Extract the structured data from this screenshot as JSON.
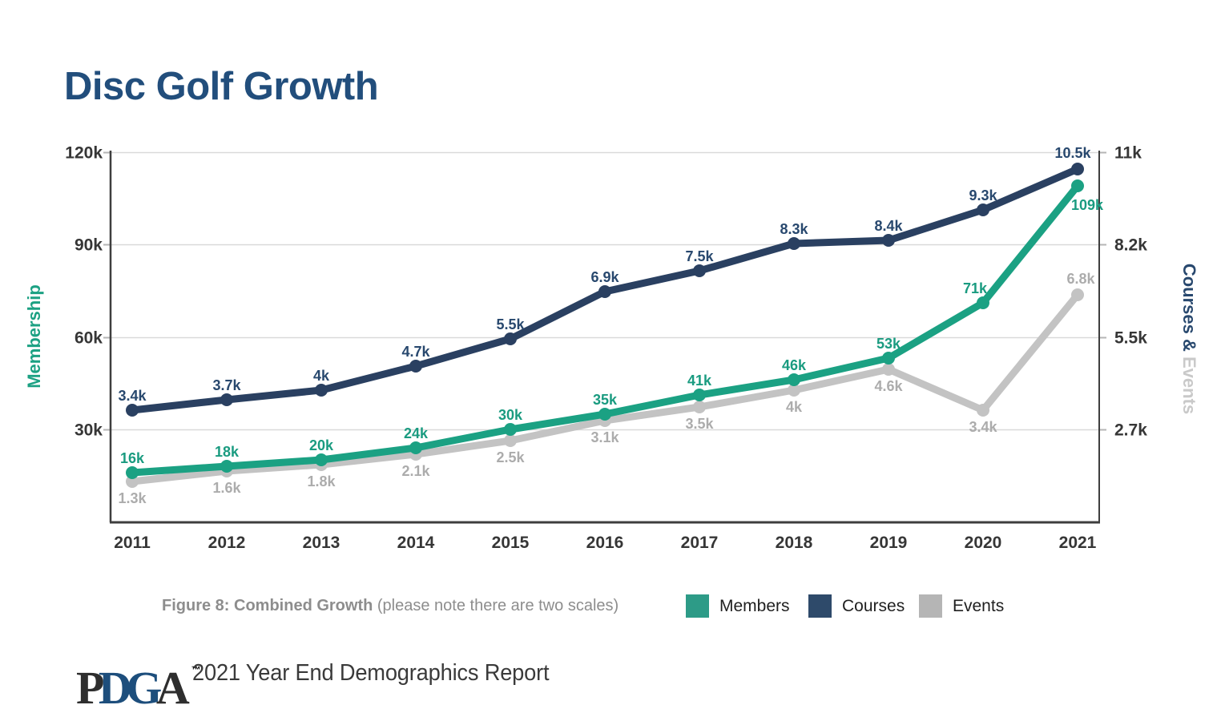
{
  "page": {
    "title": "Disc Golf Growth",
    "caption": {
      "bold": "Figure 8: Combined Growth",
      "regular": " (please note there are two scales)"
    },
    "footer": {
      "logo_letters": [
        {
          "ch": "P",
          "color": "#2E2E2E"
        },
        {
          "ch": "D",
          "color": "#1D4E7C"
        },
        {
          "ch": "G",
          "color": "#1D4E7C"
        },
        {
          "ch": "A",
          "color": "#2E2E2E"
        }
      ],
      "logo_tm": "™",
      "report_title": "2021 Year End Demographics Report"
    }
  },
  "chart_data": {
    "type": "line",
    "title": "Disc Golf Growth",
    "subtitle": "Figure 8: Combined Growth (please note there are two scales)",
    "x": [
      2011,
      2012,
      2013,
      2014,
      2015,
      2016,
      2017,
      2018,
      2019,
      2020,
      2021
    ],
    "grid": true,
    "legend_position": "bottom",
    "left_axis": {
      "label": "Membership",
      "label_color": "#1CA183",
      "range": [
        0,
        120000
      ],
      "ticks": [
        "120k",
        "90k",
        "60k",
        "30k"
      ],
      "tick_values": [
        120000,
        90000,
        60000,
        30000
      ]
    },
    "right_axis": {
      "label_primary": "Courses & ",
      "label_primary_color": "#28486E",
      "label_secondary": "Events",
      "label_secondary_color": "#C9C9C9",
      "range": [
        0,
        11000
      ],
      "ticks": [
        "11k",
        "8.2k",
        "5.5k",
        "2.7k"
      ],
      "tick_values": [
        11000,
        8200,
        5500,
        2700
      ]
    },
    "series": [
      {
        "name": "Events",
        "axis": "right",
        "color": "#C3C3C3",
        "label_color": "#ACACAC",
        "values": [
          1300,
          1600,
          1800,
          2100,
          2500,
          3100,
          3500,
          4000,
          4600,
          3400,
          6800
        ],
        "labels": [
          "1.3k",
          "1.6k",
          "1.8k",
          "2.1k",
          "2.5k",
          "3.1k",
          "3.5k",
          "4k",
          "4.6k",
          "3.4k",
          "6.8k"
        ]
      },
      {
        "name": "Courses",
        "axis": "right",
        "color": "#2A4061",
        "label_color": "#28486E",
        "values": [
          3400,
          3700,
          4000,
          4700,
          5500,
          6900,
          7500,
          8300,
          8400,
          9300,
          10500
        ],
        "labels": [
          "3.4k",
          "3.7k",
          "4k",
          "4.7k",
          "5.5k",
          "6.9k",
          "7.5k",
          "8.3k",
          "8.4k",
          "9.3k",
          "10.5k"
        ]
      },
      {
        "name": "Members",
        "axis": "left",
        "color": "#1BA183",
        "label_color": "#1A9B80",
        "values": [
          16000,
          18000,
          20000,
          24000,
          30000,
          35000,
          41000,
          46000,
          53000,
          71000,
          109000
        ],
        "labels": [
          "16k",
          "18k",
          "20k",
          "24k",
          "30k",
          "35k",
          "41k",
          "46k",
          "53k",
          "71k",
          "109k"
        ]
      }
    ],
    "legend": [
      {
        "label": "Members",
        "color": "#2D9B87"
      },
      {
        "label": "Courses",
        "color": "#2E4A6A"
      },
      {
        "label": "Events",
        "color": "#B5B5B5"
      }
    ]
  }
}
